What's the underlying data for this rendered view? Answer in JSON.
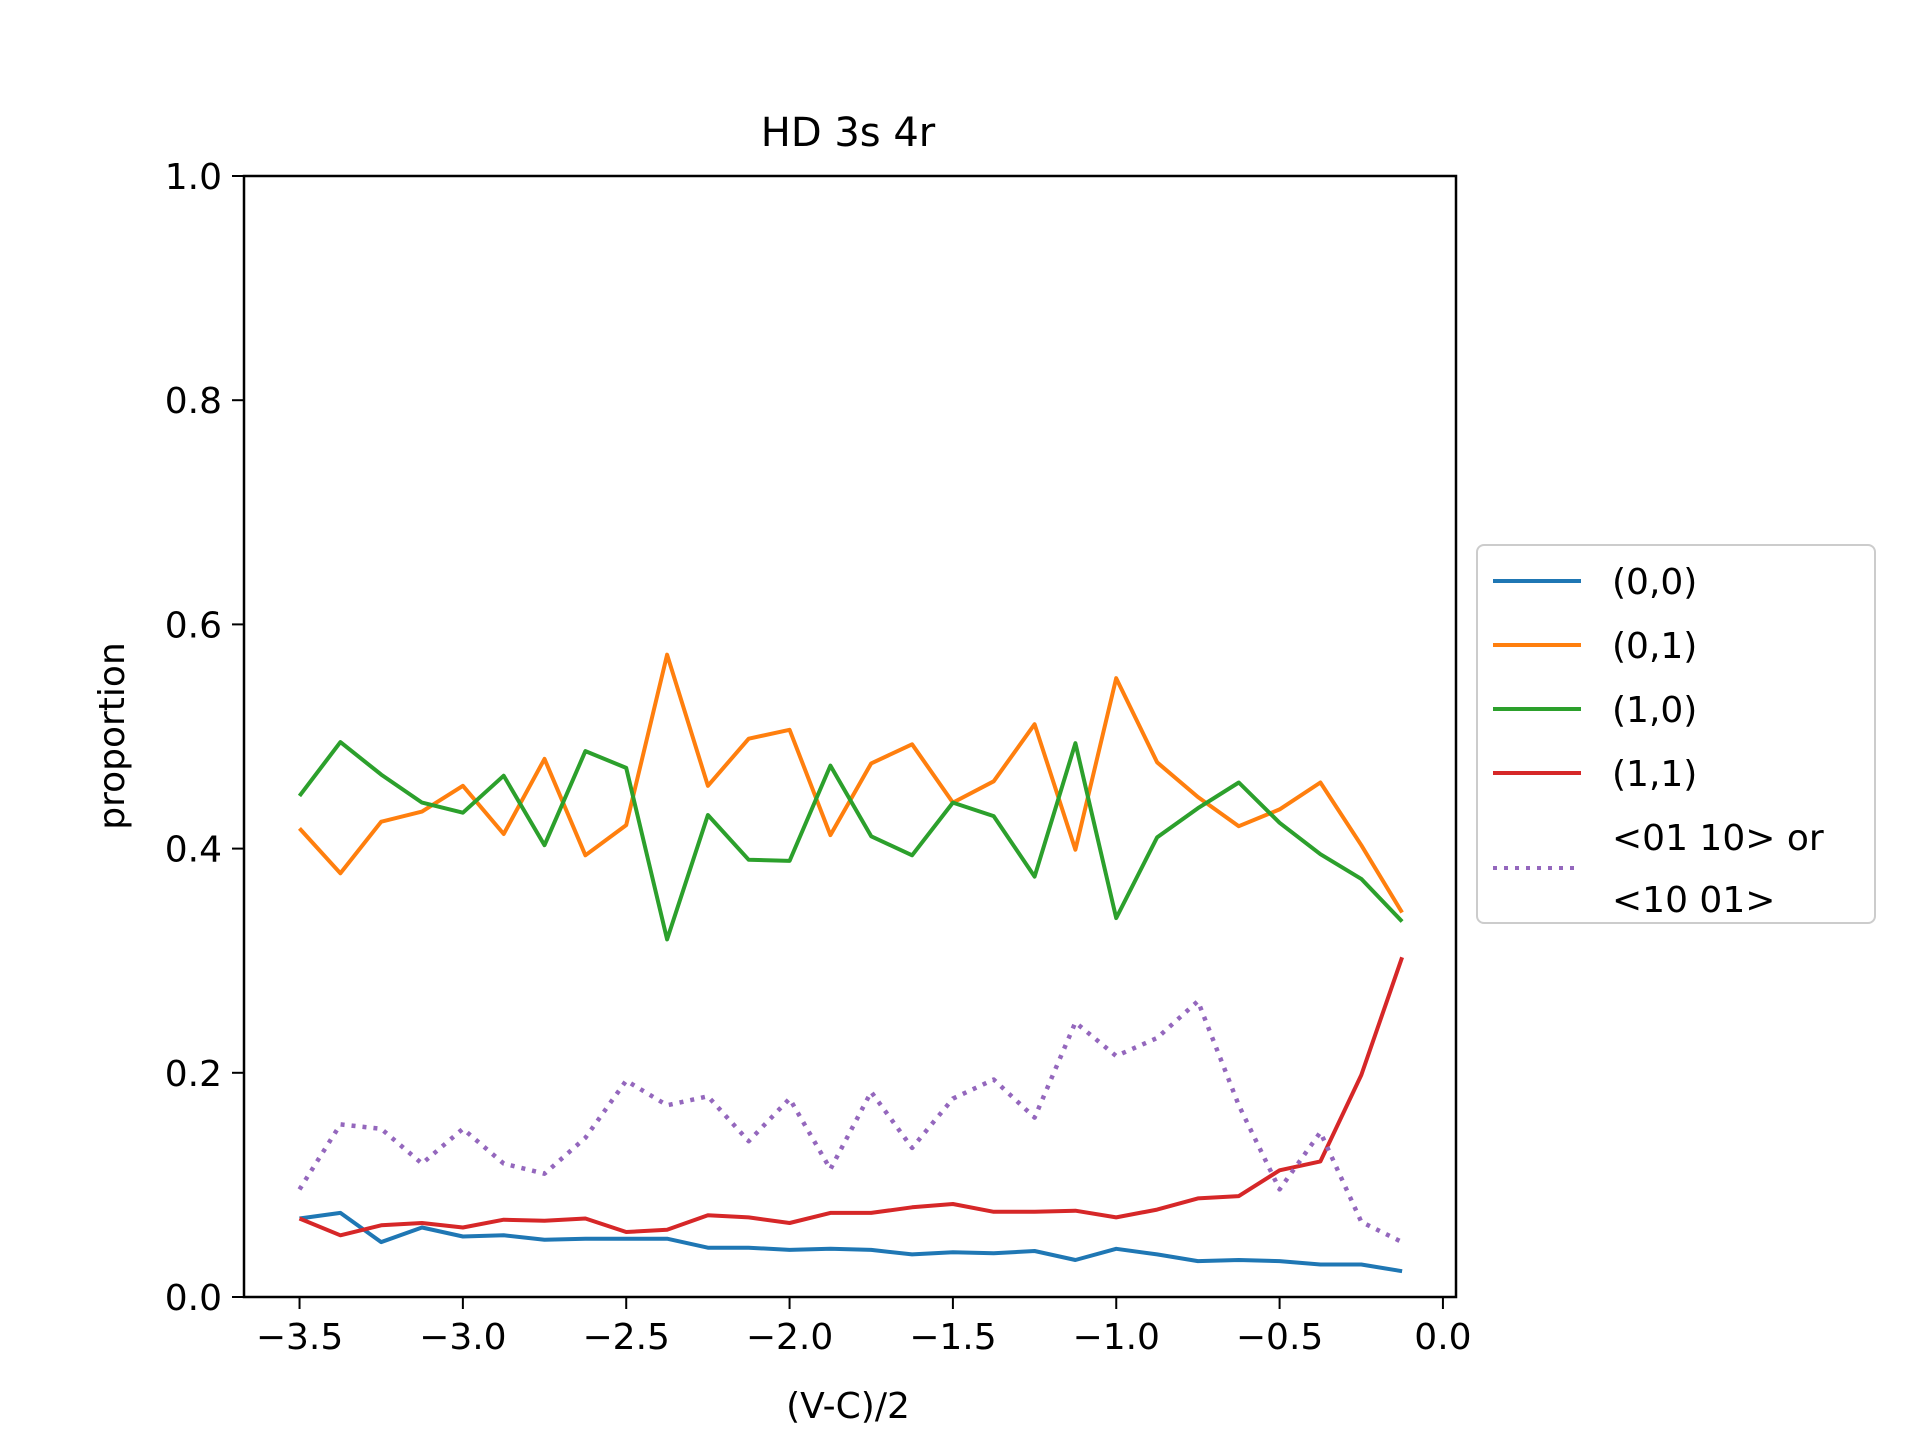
{
  "chart_data": {
    "type": "line",
    "title": "HD 3s 4r",
    "xlabel": "(V-C)/2",
    "ylabel": "proportion",
    "xlim": [
      -3.67,
      0.04
    ],
    "ylim": [
      0,
      1
    ],
    "xticks": [
      -3.5,
      -3.0,
      -2.5,
      -2.0,
      -1.5,
      -1.0,
      -0.5,
      0.0
    ],
    "xtick_labels": [
      "−3.5",
      "−3.0",
      "−2.5",
      "−2.0",
      "−1.5",
      "−1.0",
      "−0.5",
      "0.0"
    ],
    "yticks": [
      0,
      0.2,
      0.4,
      0.6,
      0.8,
      1.0
    ],
    "ytick_labels": [
      "0.0",
      "0.2",
      "0.4",
      "0.6",
      "0.8",
      "1.0"
    ],
    "grid": false,
    "legend_position": "outside-right",
    "x": [
      -3.5,
      -3.375,
      -3.25,
      -3.125,
      -3.0,
      -2.875,
      -2.75,
      -2.625,
      -2.5,
      -2.375,
      -2.25,
      -2.125,
      -2.0,
      -1.875,
      -1.75,
      -1.625,
      -1.5,
      -1.375,
      -1.25,
      -1.125,
      -1.0,
      -0.875,
      -0.75,
      -0.625,
      -0.5,
      -0.375,
      -0.25,
      -0.125
    ],
    "series": [
      {
        "name": "(0,0)",
        "color": "#1f77b4",
        "style": "solid",
        "values": [
          0.07,
          0.075,
          0.049,
          0.062,
          0.054,
          0.055,
          0.051,
          0.052,
          0.052,
          0.052,
          0.044,
          0.044,
          0.042,
          0.043,
          0.042,
          0.038,
          0.04,
          0.039,
          0.041,
          0.033,
          0.043,
          0.038,
          0.032,
          0.033,
          0.032,
          0.029,
          0.029,
          0.023
        ]
      },
      {
        "name": "(0,1)",
        "color": "#ff7f0e",
        "style": "solid",
        "values": [
          0.418,
          0.378,
          0.424,
          0.433,
          0.456,
          0.413,
          0.48,
          0.394,
          0.421,
          0.573,
          0.456,
          0.498,
          0.506,
          0.412,
          0.476,
          0.493,
          0.441,
          0.46,
          0.511,
          0.399,
          0.552,
          0.477,
          0.446,
          0.42,
          0.435,
          0.459,
          0.403,
          0.343
        ]
      },
      {
        "name": "(1,0)",
        "color": "#2ca02c",
        "style": "solid",
        "values": [
          0.447,
          0.495,
          0.466,
          0.441,
          0.432,
          0.465,
          0.403,
          0.487,
          0.472,
          0.319,
          0.43,
          0.39,
          0.389,
          0.474,
          0.411,
          0.394,
          0.441,
          0.429,
          0.375,
          0.494,
          0.338,
          0.41,
          0.436,
          0.459,
          0.423,
          0.395,
          0.373,
          0.335
        ]
      },
      {
        "name": "(1,1)",
        "color": "#d62728",
        "style": "solid",
        "values": [
          0.07,
          0.055,
          0.064,
          0.066,
          0.062,
          0.069,
          0.068,
          0.07,
          0.058,
          0.06,
          0.073,
          0.071,
          0.066,
          0.075,
          0.075,
          0.08,
          0.083,
          0.076,
          0.076,
          0.077,
          0.071,
          0.078,
          0.088,
          0.09,
          0.113,
          0.121,
          0.198,
          0.303
        ]
      },
      {
        "name": "<01 10> or\n<10 01>",
        "color": "#9467bd",
        "style": "dotted",
        "values": [
          0.096,
          0.154,
          0.15,
          0.119,
          0.15,
          0.119,
          0.11,
          0.142,
          0.193,
          0.171,
          0.179,
          0.139,
          0.177,
          0.114,
          0.183,
          0.133,
          0.177,
          0.194,
          0.16,
          0.245,
          0.215,
          0.231,
          0.264,
          0.171,
          0.096,
          0.147,
          0.067,
          0.049
        ]
      }
    ]
  }
}
